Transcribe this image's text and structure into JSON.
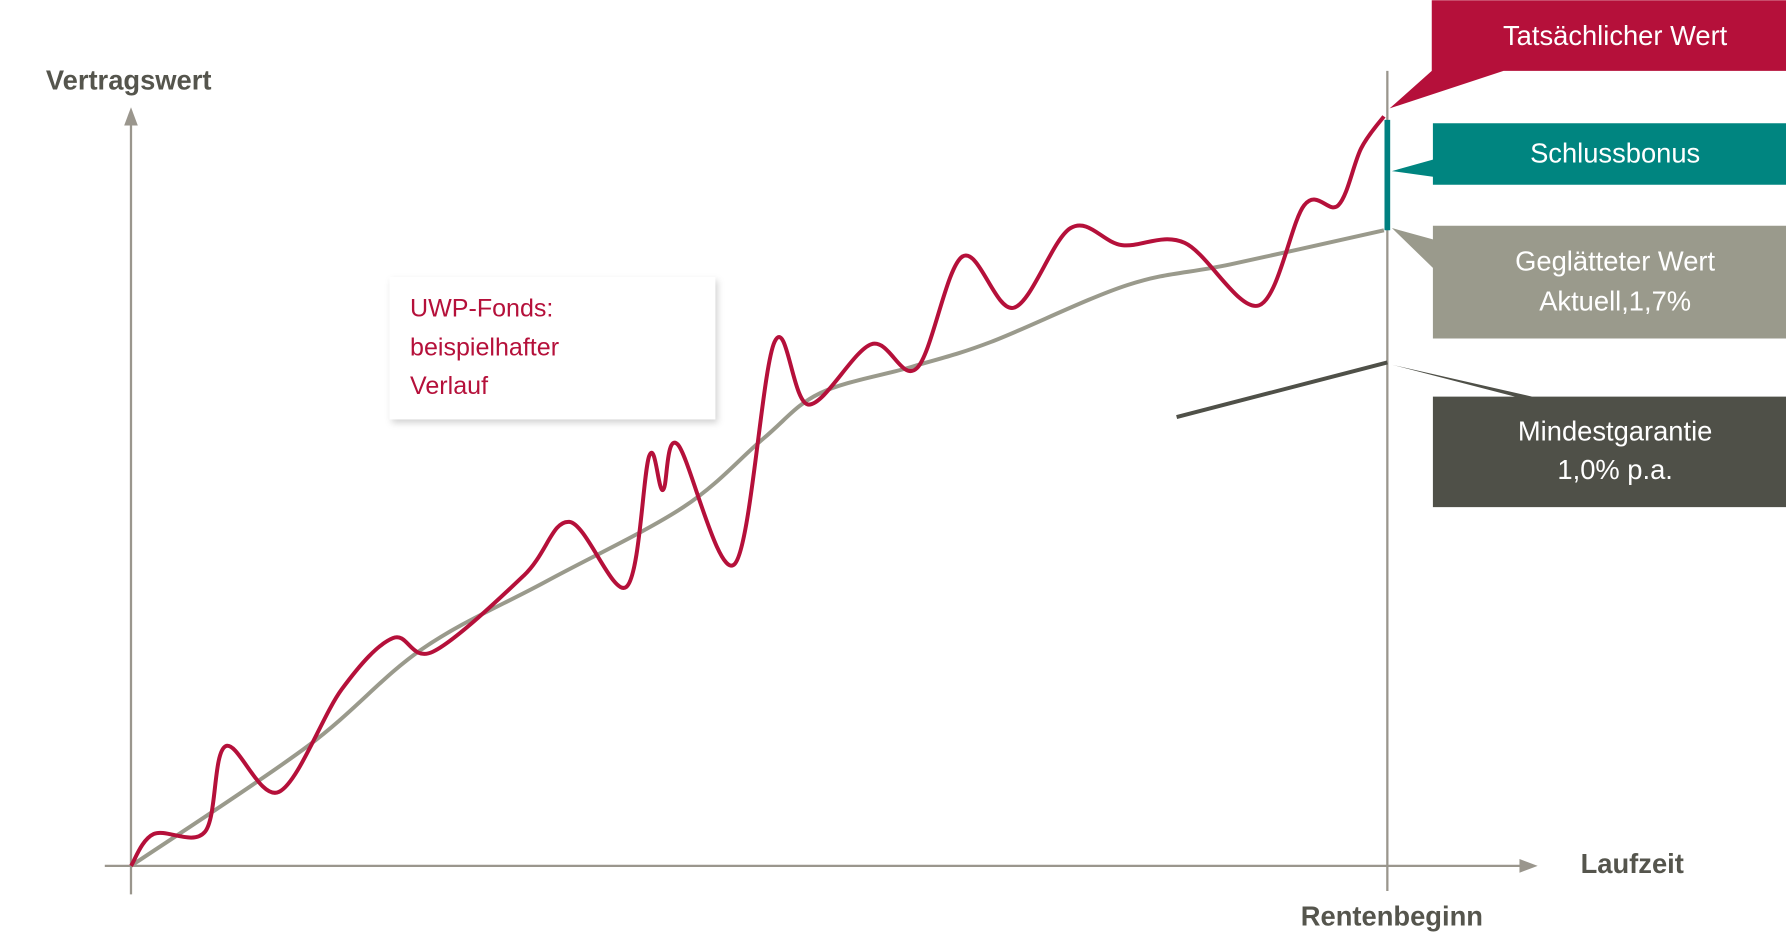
{
  "y_axis_label": "Vertragswert",
  "x_axis_label": "Laufzeit",
  "x_marker_label": "Rentenbeginn",
  "callouts": {
    "actual": "Tatsächlicher Wert",
    "bonus": "Schlussbonus",
    "smoothed": [
      "Geglätteter Wert",
      "Aktuell,1,7%"
    ],
    "guarantee": [
      "Mindestgarantie",
      "1,0% p.a."
    ]
  },
  "fund_note": [
    "UWP-Fonds:",
    "beispielhafter",
    "Verlauf"
  ]
}
